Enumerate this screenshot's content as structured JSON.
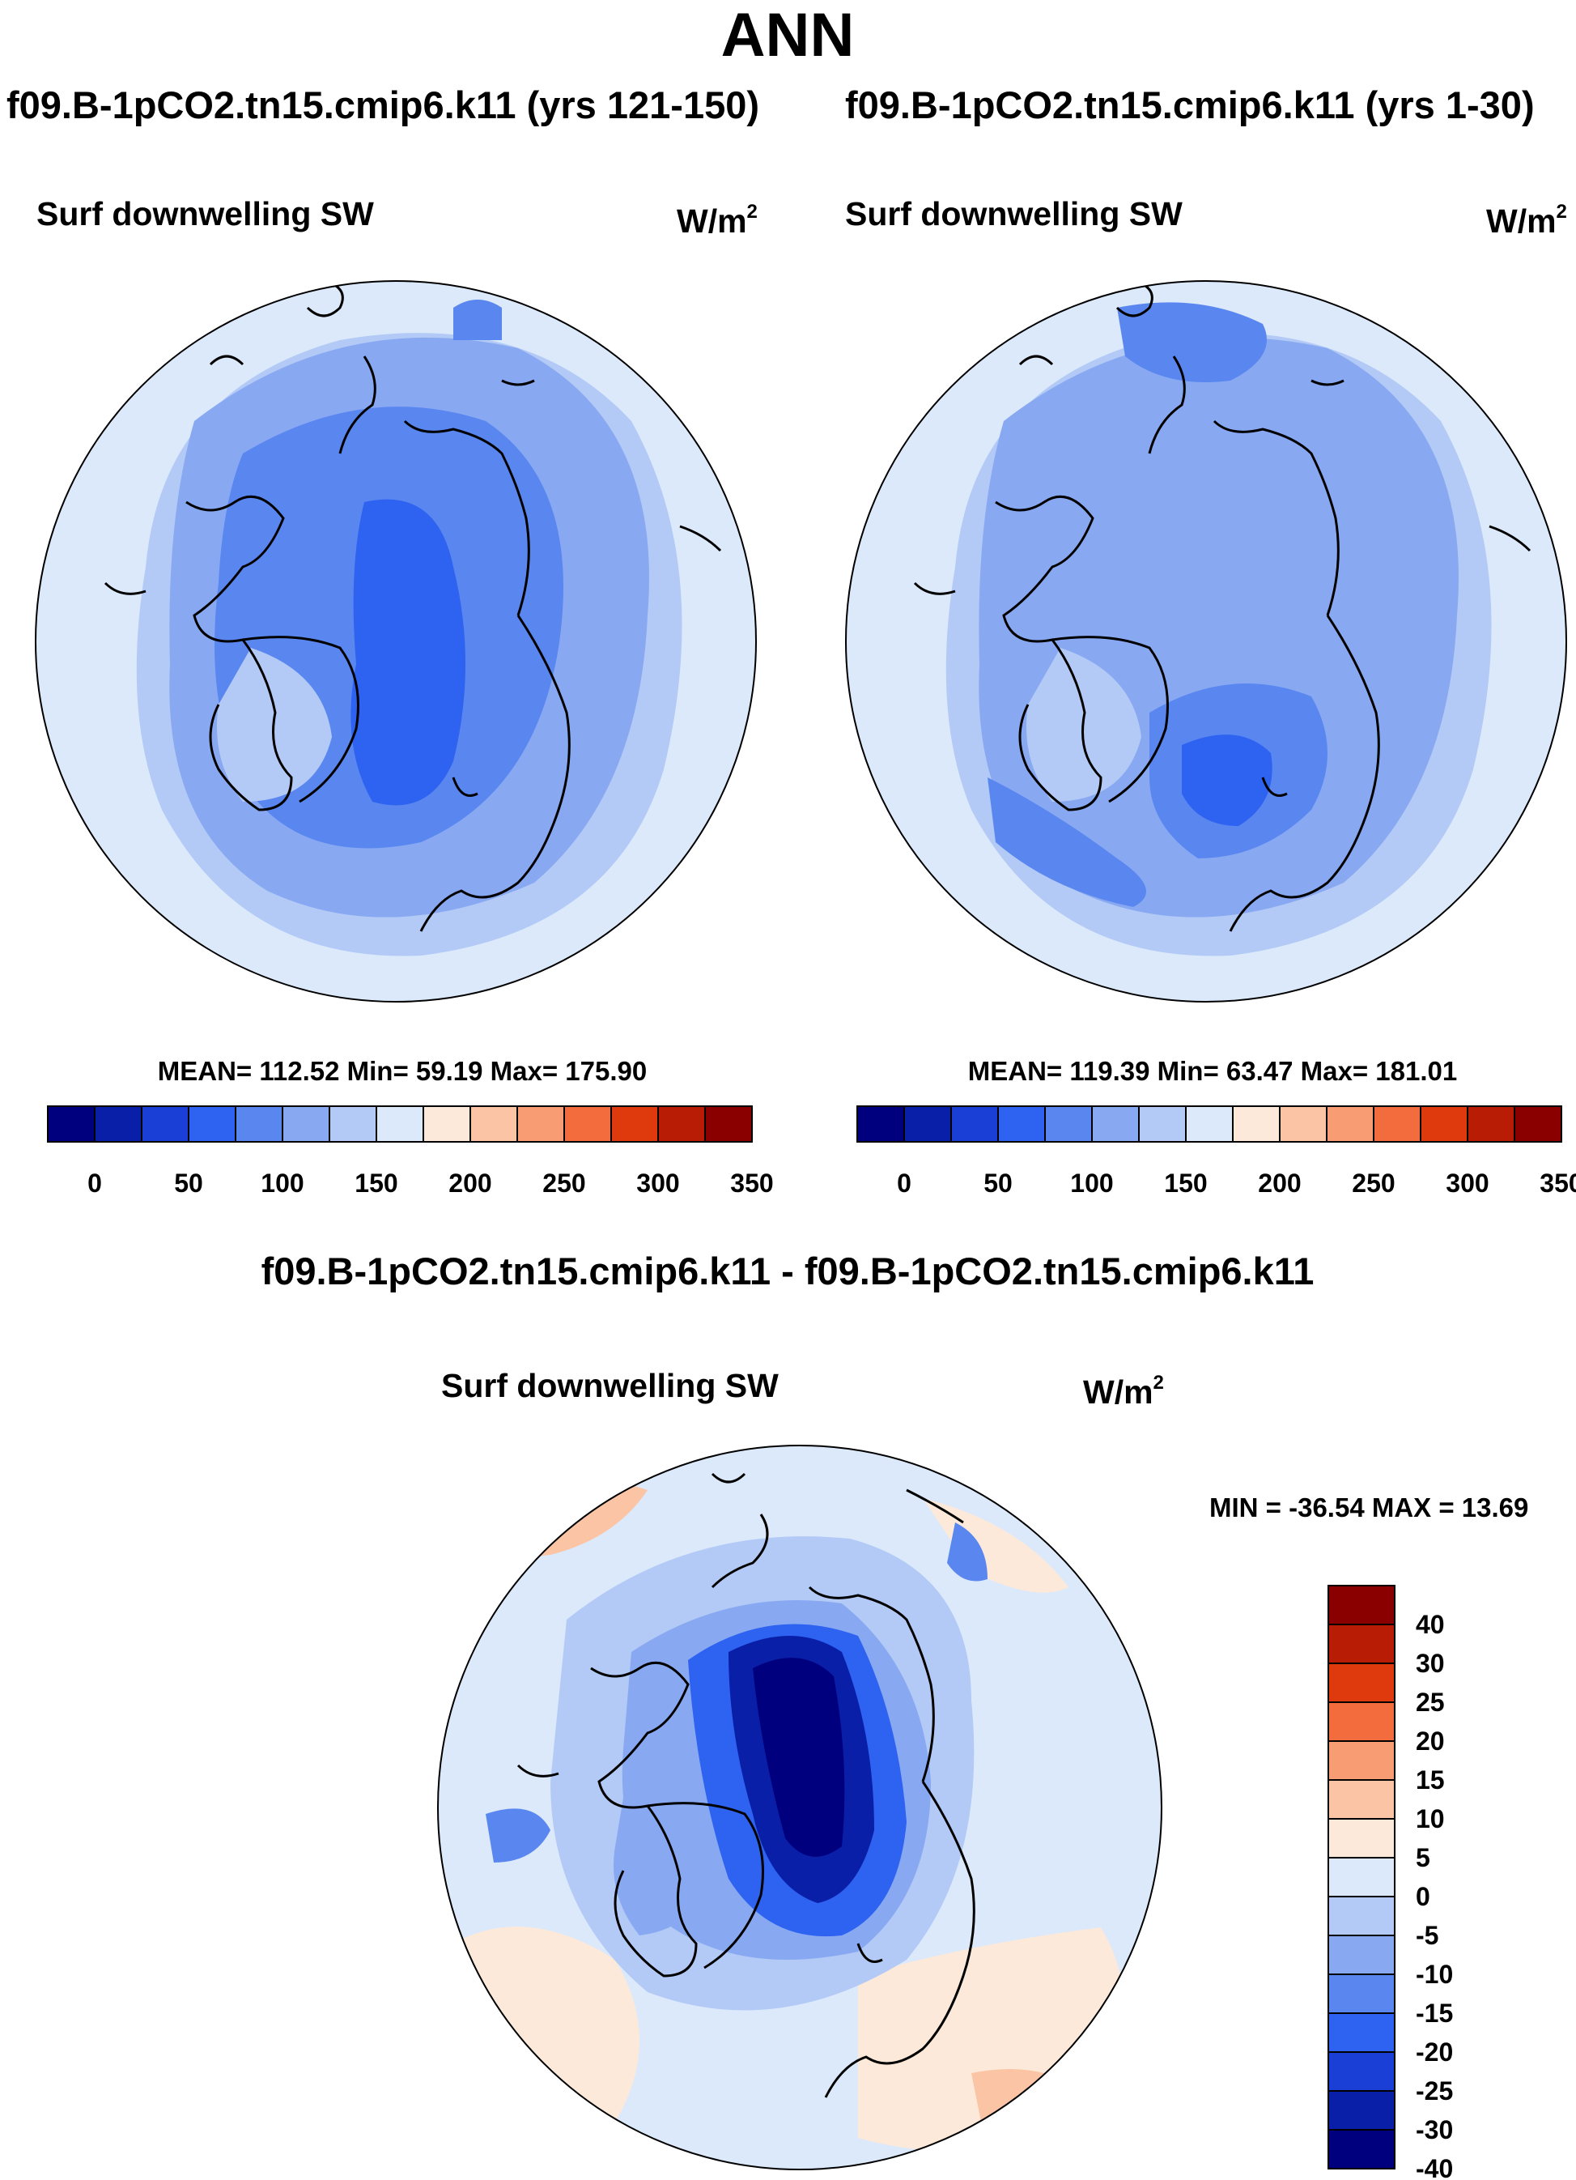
{
  "title": "ANN",
  "panels": [
    {
      "case_title": "f09.B-1pCO2.tn15.cmip6.k11 (yrs 121-150)",
      "variable": "Surf downwelling SW",
      "units_base": "W/m",
      "units_exp": "2",
      "stats_text": "MEAN= 112.52  Min=  59.19  Max= 175.90"
    },
    {
      "case_title": "f09.B-1pCO2.tn15.cmip6.k11 (yrs 1-30)",
      "variable": "Surf downwelling SW",
      "units_base": "W/m",
      "units_exp": "2",
      "stats_text": "MEAN= 119.39  Min=  63.47  Max= 181.01"
    },
    {
      "case_title": "f09.B-1pCO2.tn15.cmip6.k11 - f09.B-1pCO2.tn15.cmip6.k11",
      "variable": "Surf downwelling SW",
      "units_base": "W/m",
      "units_exp": "2",
      "stats_text": "MIN = -36.54 MAX =  13.69"
    }
  ],
  "colorbars": {
    "main": {
      "ticks": [
        "0",
        "50",
        "100",
        "150",
        "200",
        "250",
        "300",
        "350"
      ],
      "colors": [
        "#00007f",
        "#0a1fa8",
        "#1a3fd6",
        "#2e62f0",
        "#5a86f0",
        "#88a9f2",
        "#b3caf6",
        "#dbe9fb",
        "#fde9d9",
        "#fbc4a5",
        "#f89c74",
        "#f26c3e",
        "#de3a0e",
        "#b81c05",
        "#8a0000"
      ]
    },
    "diff": {
      "ticks": [
        "40",
        "30",
        "25",
        "20",
        "15",
        "10",
        "5",
        "0",
        "-5",
        "-10",
        "-15",
        "-20",
        "-25",
        "-30",
        "-40"
      ],
      "colors": [
        "#8a0000",
        "#b81c05",
        "#de3a0e",
        "#f26c3e",
        "#f89c74",
        "#fbc4a5",
        "#fde9d9",
        "#dbe9fb",
        "#b3caf6",
        "#88a9f2",
        "#5a86f0",
        "#2e62f0",
        "#1a3fd6",
        "#0a1fa8",
        "#00007f"
      ]
    }
  },
  "chart_data": [
    {
      "type": "heatmap",
      "title": "f09.B-1pCO2.tn15.cmip6.k11 (yrs 121-150)",
      "variable": "Surf downwelling SW",
      "units": "W/m2",
      "projection": "polar stereographic (north)",
      "mean": 112.52,
      "min": 59.19,
      "max": 175.9,
      "contour_levels": [
        0,
        25,
        50,
        75,
        100,
        125,
        150,
        175,
        200,
        225,
        250,
        275,
        300,
        325,
        350
      ],
      "colorbar_ticks": [
        0,
        50,
        100,
        150,
        200,
        250,
        300,
        350
      ]
    },
    {
      "type": "heatmap",
      "title": "f09.B-1pCO2.tn15.cmip6.k11 (yrs 1-30)",
      "variable": "Surf downwelling SW",
      "units": "W/m2",
      "projection": "polar stereographic (north)",
      "mean": 119.39,
      "min": 63.47,
      "max": 181.01,
      "contour_levels": [
        0,
        25,
        50,
        75,
        100,
        125,
        150,
        175,
        200,
        225,
        250,
        275,
        300,
        325,
        350
      ],
      "colorbar_ticks": [
        0,
        50,
        100,
        150,
        200,
        250,
        300,
        350
      ]
    },
    {
      "type": "heatmap",
      "title": "f09.B-1pCO2.tn15.cmip6.k11 - f09.B-1pCO2.tn15.cmip6.k11",
      "variable": "Surf downwelling SW",
      "units": "W/m2",
      "projection": "polar stereographic (north)",
      "min": -36.54,
      "max": 13.69,
      "contour_levels": [
        -40,
        -30,
        -25,
        -20,
        -15,
        -10,
        -5,
        0,
        5,
        10,
        15,
        20,
        25,
        30,
        40
      ],
      "colorbar_ticks": [
        40,
        30,
        25,
        20,
        15,
        10,
        5,
        0,
        -5,
        -10,
        -15,
        -20,
        -25,
        -30,
        -40
      ]
    }
  ]
}
